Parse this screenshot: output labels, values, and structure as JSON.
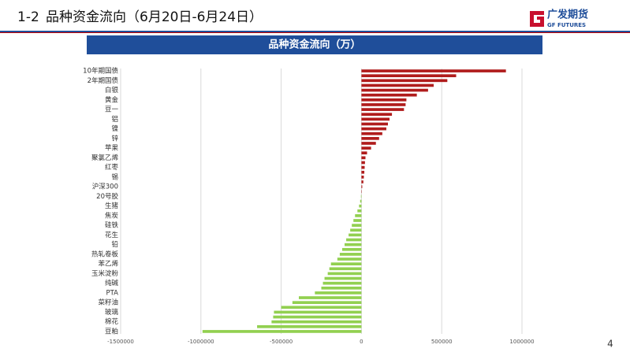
{
  "header": {
    "section": "1-2",
    "title": "品种资金流向（6月20日-6月24日）"
  },
  "logo": {
    "name": "广发期货",
    "sub": "GF FUTURES"
  },
  "page_number": "4",
  "chart_data": {
    "type": "bar",
    "orientation": "horizontal",
    "title": "品种资金流向（万）",
    "categories": [
      "10年期国债",
      null,
      "2年期国债",
      null,
      "白银",
      null,
      "黄金",
      null,
      "豆一",
      null,
      "铝",
      null,
      "镍",
      null,
      "锌",
      null,
      "苹果",
      null,
      "聚氯乙烯",
      null,
      "红枣",
      null,
      "锡",
      null,
      "沪深300",
      null,
      "20号胶",
      null,
      "生猪",
      null,
      "焦炭",
      null,
      "硅铁",
      null,
      "花生",
      null,
      "铅",
      null,
      "热轧卷板",
      null,
      "苯乙烯",
      null,
      "玉米淀粉",
      null,
      "纯碱",
      null,
      "PTA",
      null,
      "菜籽油",
      null,
      "玻璃",
      null,
      "棉花",
      null,
      "豆粕"
    ],
    "values": [
      900000,
      590000,
      535000,
      450000,
      415000,
      345000,
      280000,
      275000,
      265000,
      190000,
      175000,
      165000,
      155000,
      130000,
      110000,
      90000,
      60000,
      35000,
      25000,
      22000,
      20000,
      18000,
      15000,
      12000,
      5000,
      2000,
      -3000,
      -8000,
      -15000,
      -25000,
      -40000,
      -50000,
      -60000,
      -70000,
      -80000,
      -95000,
      -105000,
      -120000,
      -135000,
      -150000,
      -190000,
      -200000,
      -210000,
      -230000,
      -240000,
      -250000,
      -290000,
      -390000,
      -430000,
      -500000,
      -545000,
      -550000,
      -560000,
      -650000,
      -990000
    ],
    "positive_color": "#b01c1c",
    "negative_color": "#92d050",
    "xlim": [
      -1500000,
      1000000
    ],
    "xticks": [
      -1500000,
      -1000000,
      -500000,
      0,
      500000,
      1000000
    ],
    "grid": true
  }
}
